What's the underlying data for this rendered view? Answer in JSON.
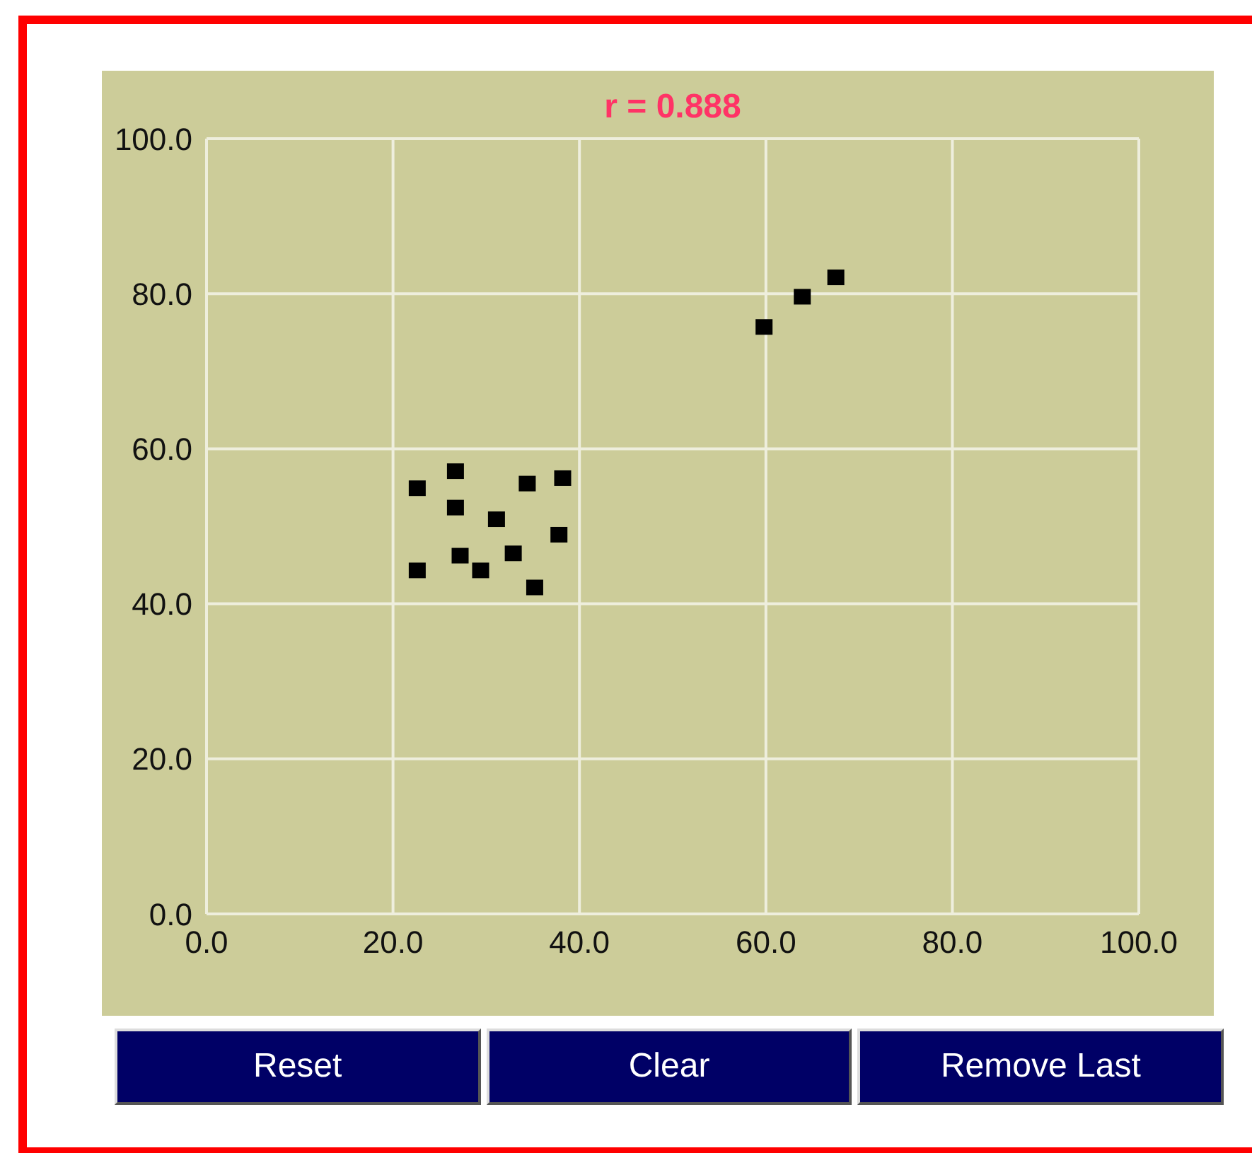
{
  "chart_data": {
    "type": "scatter",
    "title": "r = 0.888",
    "x": [
      22.6,
      26.7,
      26.7,
      31.1,
      34.4,
      38.2,
      22.6,
      27.2,
      29.4,
      32.9,
      37.8,
      35.2,
      59.8,
      63.9,
      67.5
    ],
    "series": [
      {
        "color": "#000000",
        "values": [
          55.0,
          57.2,
          52.5,
          51.0,
          55.6,
          56.3,
          44.4,
          46.3,
          44.4,
          46.6,
          49.0,
          42.2,
          75.8,
          79.7,
          82.2
        ]
      }
    ],
    "xlim": [
      0,
      100
    ],
    "ylim": [
      0,
      100
    ],
    "xticks": [
      {
        "value": 0,
        "label": "0.0"
      },
      {
        "value": 20,
        "label": "20.0"
      },
      {
        "value": 40,
        "label": "40.0"
      },
      {
        "value": 60,
        "label": "60.0"
      },
      {
        "value": 80,
        "label": "80.0"
      },
      {
        "value": 100,
        "label": "100.0"
      }
    ],
    "yticks": [
      {
        "value": 0,
        "label": "0.0"
      },
      {
        "value": 20,
        "label": "20.0"
      },
      {
        "value": 40,
        "label": "40.0"
      },
      {
        "value": 60,
        "label": "60.0"
      },
      {
        "value": 80,
        "label": "80.0"
      },
      {
        "value": 100,
        "label": "100.0"
      }
    ],
    "grid": true,
    "marker": "square",
    "legend": false,
    "annotations": [
      "Reset",
      "Clear",
      "Remove Last"
    ]
  }
}
